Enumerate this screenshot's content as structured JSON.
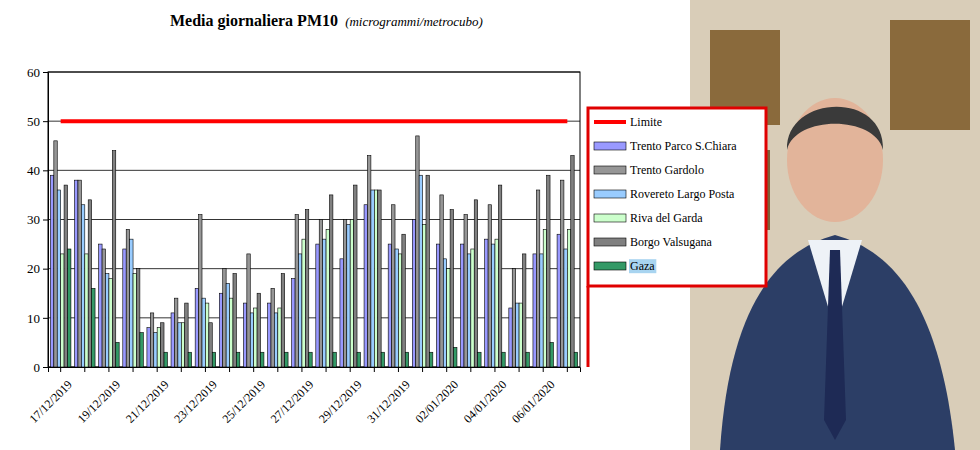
{
  "chart_data": {
    "type": "bar",
    "title": "Media giornaliera PM10",
    "subtitle": "(microgrammi/metrocubo)",
    "categories": [
      "17/12/2019",
      null,
      "19/12/2019",
      null,
      "21/12/2019",
      null,
      "23/12/2019",
      null,
      "25/12/2019",
      null,
      "27/12/2019",
      null,
      "29/12/2019",
      null,
      "31/12/2019",
      null,
      "02/01/2020",
      null,
      "04/01/2020",
      null,
      "06/01/2020",
      null
    ],
    "series": [
      {
        "name": "Limite",
        "type": "line",
        "color": "#ff0000",
        "values": [
          50,
          50,
          50,
          50,
          50,
          50,
          50,
          50,
          50,
          50,
          50,
          50,
          50,
          50,
          50,
          50,
          50,
          50,
          50,
          50,
          50,
          50
        ]
      },
      {
        "name": "Trento Parco S.Chiara",
        "color": "#9999ff",
        "values": [
          39,
          38,
          25,
          24,
          8,
          11,
          16,
          15,
          13,
          13,
          18,
          25,
          22,
          33,
          25,
          30,
          25,
          25,
          26,
          12,
          23,
          27
        ]
      },
      {
        "name": "Trento Gardolo",
        "color": "#969696",
        "values": [
          46,
          38,
          24,
          28,
          11,
          14,
          31,
          20,
          23,
          16,
          31,
          30,
          30,
          43,
          33,
          47,
          35,
          31,
          33,
          20,
          36,
          38
        ]
      },
      {
        "name": "Rovereto Largo Posta",
        "color": "#99ccff",
        "values": [
          36,
          33,
          19,
          26,
          7,
          9,
          14,
          17,
          11,
          11,
          23,
          26,
          29,
          36,
          24,
          39,
          22,
          23,
          25,
          13,
          23,
          24
        ]
      },
      {
        "name": "Riva del Garda",
        "color": "#ccffcc",
        "values": [
          23,
          23,
          18,
          19,
          8,
          9,
          13,
          14,
          12,
          12,
          26,
          28,
          30,
          36,
          23,
          29,
          20,
          24,
          26,
          13,
          28,
          28
        ]
      },
      {
        "name": "Borgo Valsugana",
        "color": "#808080",
        "values": [
          37,
          34,
          44,
          20,
          9,
          13,
          9,
          19,
          15,
          19,
          32,
          35,
          37,
          36,
          27,
          39,
          32,
          34,
          37,
          23,
          39,
          43
        ]
      },
      {
        "name": "Gaza",
        "color": "#339966",
        "values": [
          24,
          16,
          5,
          7,
          3,
          3,
          3,
          3,
          3,
          3,
          3,
          3,
          3,
          3,
          3,
          3,
          4,
          3,
          3,
          3,
          5,
          3
        ]
      }
    ],
    "ylim": [
      0,
      60
    ],
    "yticks": [
      0,
      10,
      20,
      30,
      40,
      50,
      60
    ],
    "grid": true,
    "legend": "right"
  }
}
